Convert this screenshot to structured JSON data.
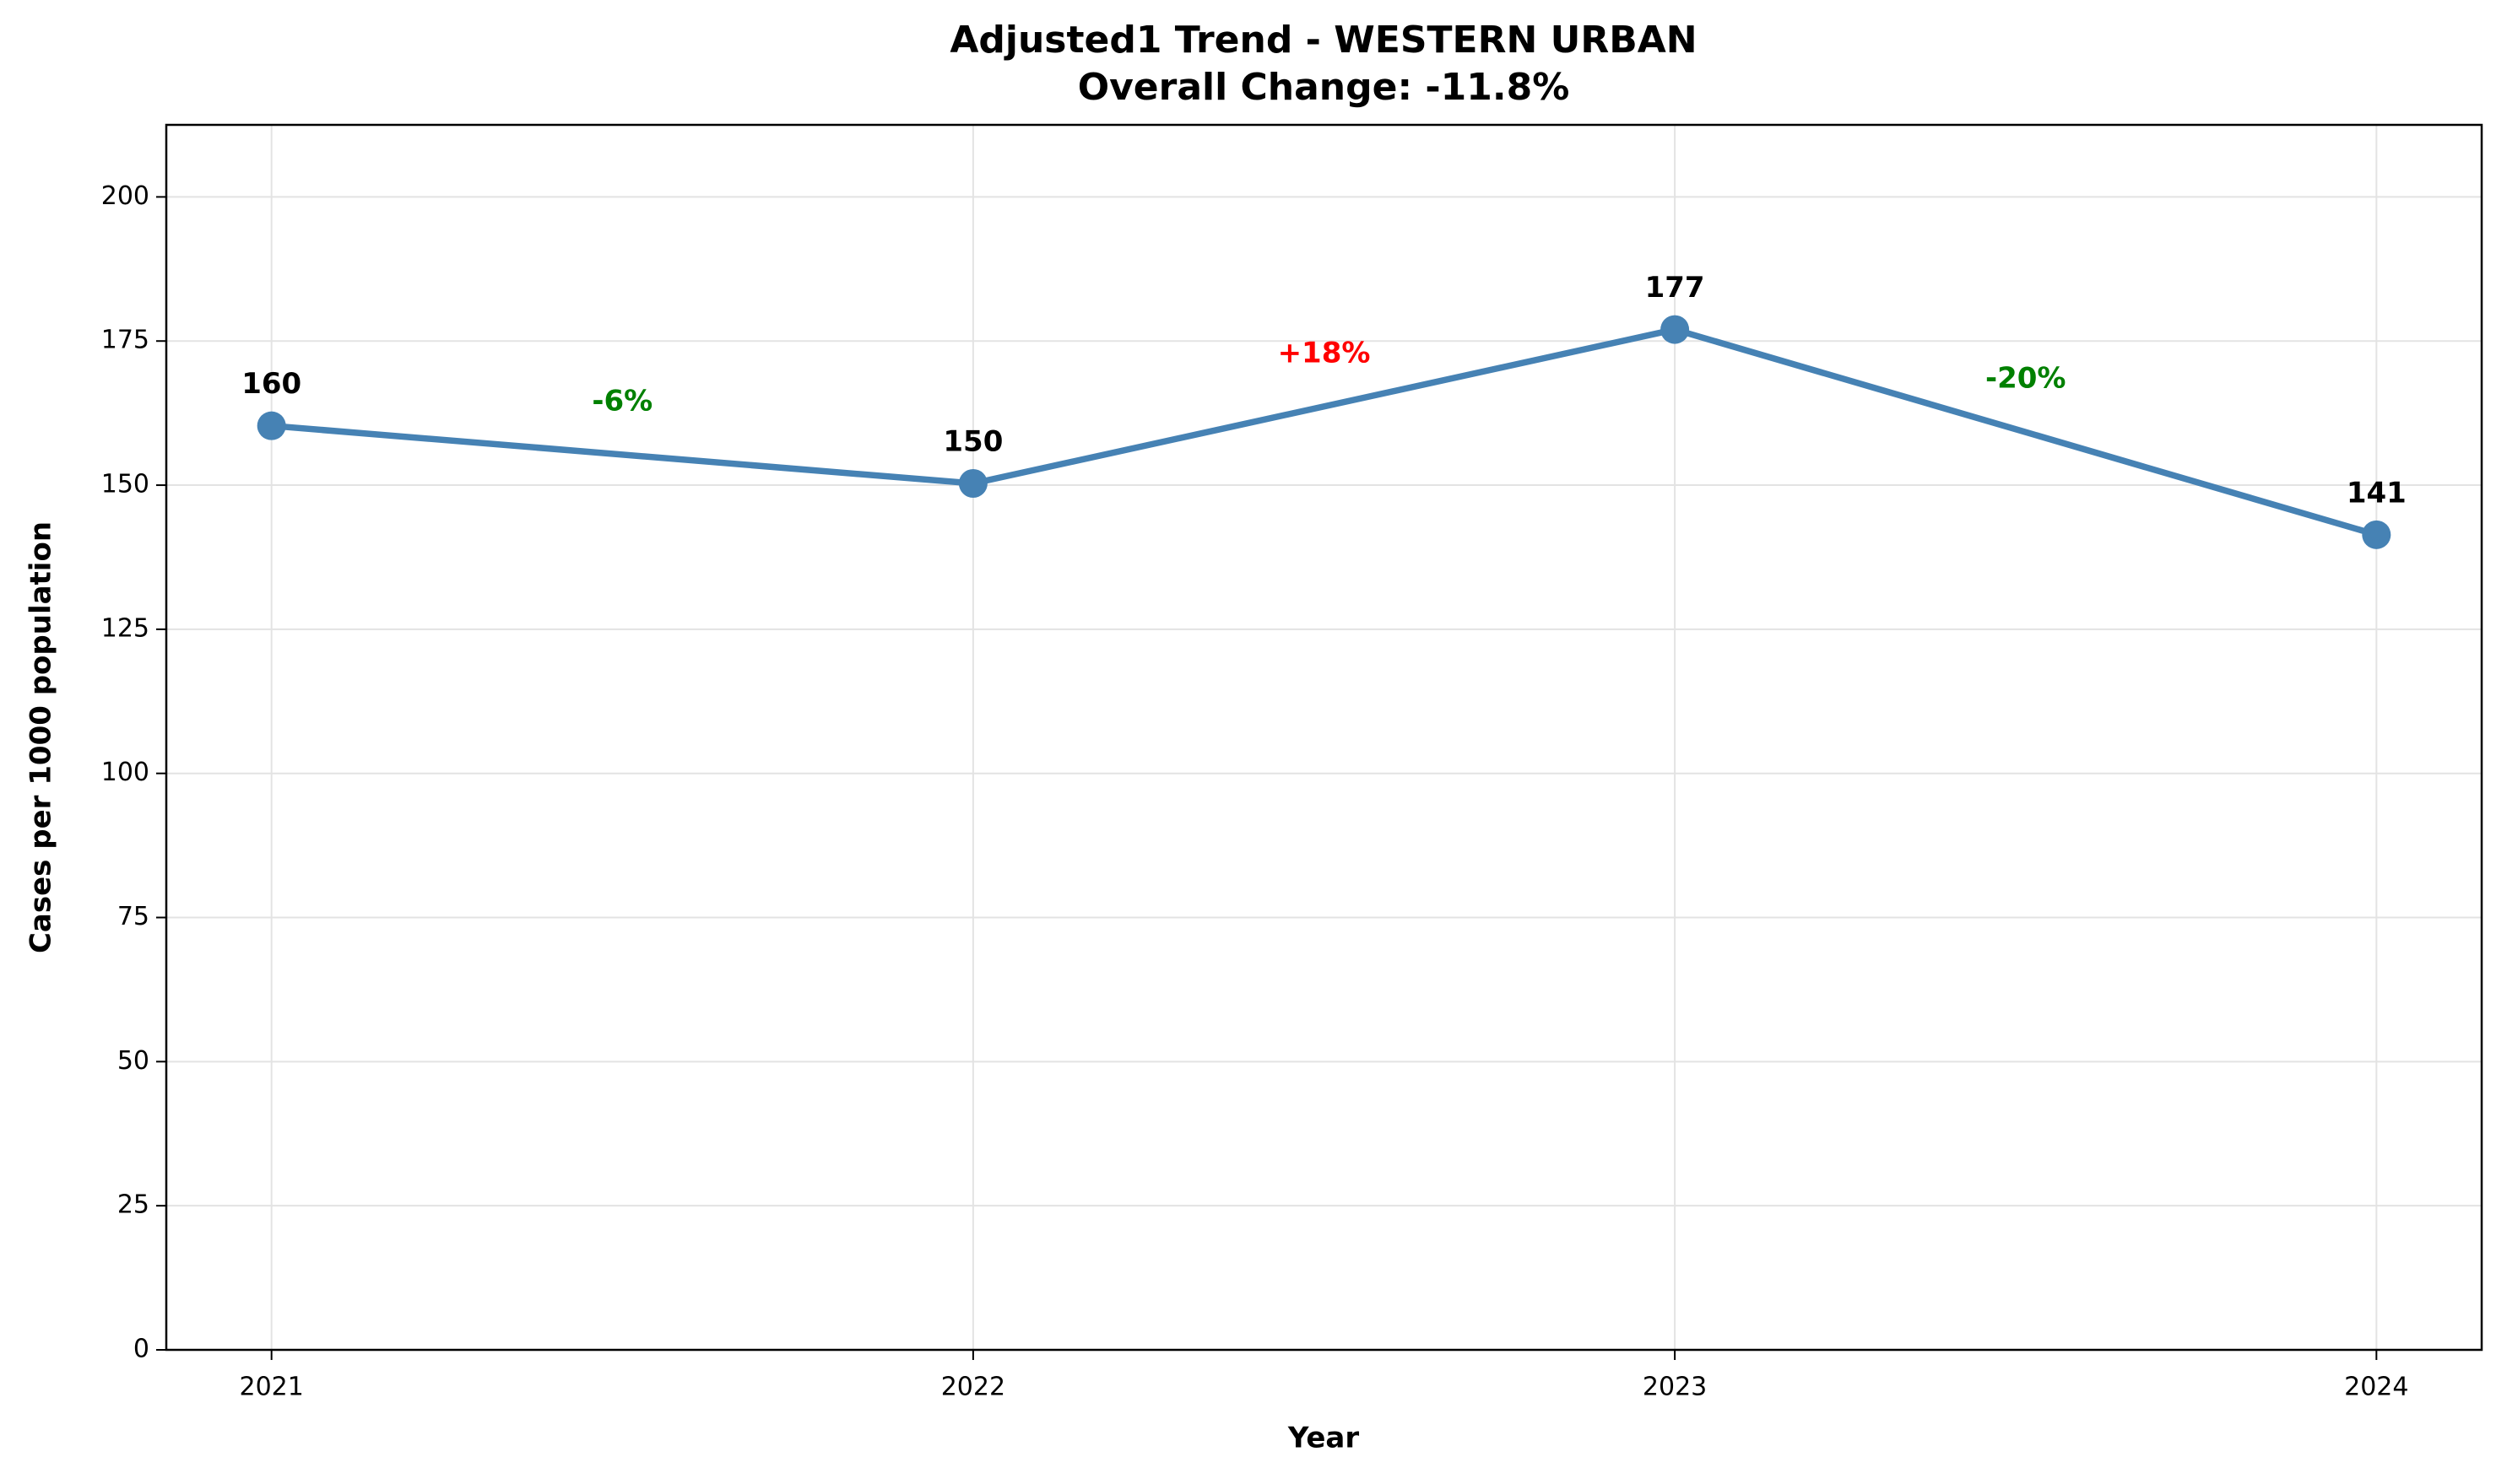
{
  "chart_data": {
    "type": "line",
    "title": "Adjusted1 Trend - WESTERN URBAN",
    "subtitle": "Overall Change: -11.8%",
    "x_label": "Year",
    "y_label": "Cases per 1000 population",
    "x": [
      2021,
      2022,
      2023,
      2024
    ],
    "series": [
      {
        "name": "Adjusted1",
        "color": "#4682b4",
        "values": [
          160.3,
          150.3,
          177,
          141.4
        ],
        "value_labels": [
          "160",
          "150",
          "177",
          "141"
        ]
      }
    ],
    "annotations": [
      {
        "text": "-6%",
        "color": "#008000"
      },
      {
        "text": "+18%",
        "color": "#ff0000"
      },
      {
        "text": "-20%",
        "color": "#008000"
      }
    ],
    "xlim": [
      2020.85,
      2024.15
    ],
    "ylim": [
      0,
      212.5
    ],
    "xticks": [
      2021,
      2022,
      2023,
      2024
    ],
    "yticks": [
      0,
      25,
      50,
      75,
      100,
      125,
      150,
      175,
      200
    ],
    "grid": true
  }
}
